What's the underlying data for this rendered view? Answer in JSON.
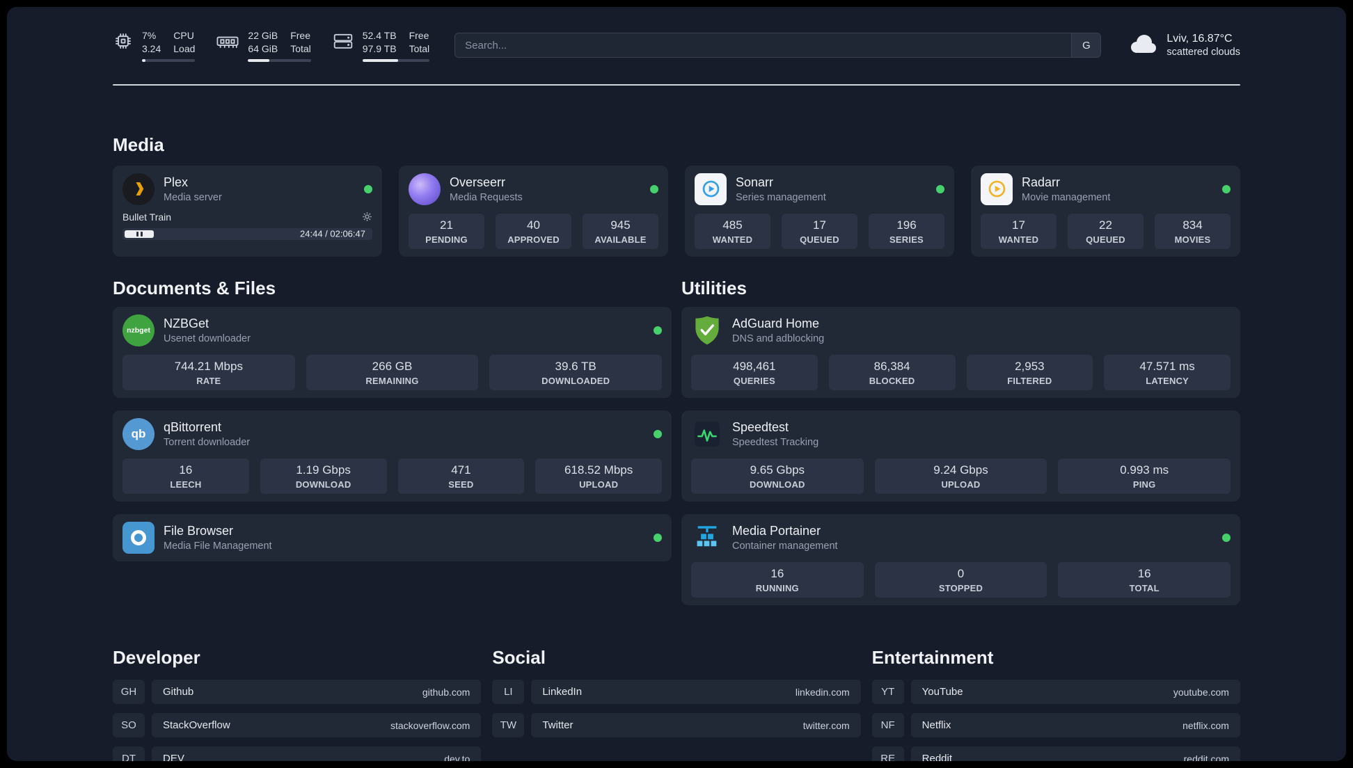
{
  "topbar": {
    "cpu": {
      "value_top": "7%",
      "value_bottom": "3.24",
      "label_top": "CPU",
      "label_bottom": "Load",
      "percent": 7
    },
    "ram": {
      "value_top": "22 GiB",
      "value_bottom": "64 GiB",
      "label_top": "Free",
      "label_bottom": "Total",
      "percent": 34
    },
    "disk": {
      "value_top": "52.4 TB",
      "value_bottom": "97.9 TB",
      "label_top": "Free",
      "label_bottom": "Total",
      "percent": 53
    },
    "search": {
      "placeholder": "Search...",
      "button": "G"
    },
    "weather": {
      "location": "Lviv, 16.87°C",
      "condition": "scattered clouds"
    }
  },
  "sections": {
    "media": {
      "title": "Media",
      "cards": [
        {
          "title": "Plex",
          "subtitle": "Media server",
          "status": "online",
          "player": {
            "track": "Bullet Train",
            "time": "24:44 / 02:06:47"
          }
        },
        {
          "title": "Overseerr",
          "subtitle": "Media Requests",
          "status": "online",
          "stats": [
            {
              "value": "21",
              "label": "PENDING"
            },
            {
              "value": "40",
              "label": "APPROVED"
            },
            {
              "value": "945",
              "label": "AVAILABLE"
            }
          ]
        },
        {
          "title": "Sonarr",
          "subtitle": "Series management",
          "status": "online",
          "stats": [
            {
              "value": "485",
              "label": "WANTED"
            },
            {
              "value": "17",
              "label": "QUEUED"
            },
            {
              "value": "196",
              "label": "SERIES"
            }
          ]
        },
        {
          "title": "Radarr",
          "subtitle": "Movie management",
          "status": "online",
          "stats": [
            {
              "value": "17",
              "label": "WANTED"
            },
            {
              "value": "22",
              "label": "QUEUED"
            },
            {
              "value": "834",
              "label": "MOVIES"
            }
          ]
        }
      ]
    },
    "documents": {
      "title": "Documents & Files",
      "cards": [
        {
          "title": "NZBGet",
          "subtitle": "Usenet downloader",
          "status": "online",
          "icon_text": "nzbget",
          "stats": [
            {
              "value": "744.21 Mbps",
              "label": "RATE"
            },
            {
              "value": "266 GB",
              "label": "REMAINING"
            },
            {
              "value": "39.6 TB",
              "label": "DOWNLOADED"
            }
          ]
        },
        {
          "title": "qBittorrent",
          "subtitle": "Torrent downloader",
          "status": "online",
          "icon_text": "qb",
          "stats": [
            {
              "value": "16",
              "label": "LEECH"
            },
            {
              "value": "1.19 Gbps",
              "label": "DOWNLOAD"
            },
            {
              "value": "471",
              "label": "SEED"
            },
            {
              "value": "618.52 Mbps",
              "label": "UPLOAD"
            }
          ]
        },
        {
          "title": "File Browser",
          "subtitle": "Media File Management",
          "status": "online"
        }
      ]
    },
    "utilities": {
      "title": "Utilities",
      "cards": [
        {
          "title": "AdGuard Home",
          "subtitle": "DNS and adblocking",
          "stats": [
            {
              "value": "498,461",
              "label": "QUERIES"
            },
            {
              "value": "86,384",
              "label": "BLOCKED"
            },
            {
              "value": "2,953",
              "label": "FILTERED"
            },
            {
              "value": "47.571 ms",
              "label": "LATENCY"
            }
          ]
        },
        {
          "title": "Speedtest",
          "subtitle": "Speedtest Tracking",
          "stats": [
            {
              "value": "9.65 Gbps",
              "label": "DOWNLOAD"
            },
            {
              "value": "9.24 Gbps",
              "label": "UPLOAD"
            },
            {
              "value": "0.993 ms",
              "label": "PING"
            }
          ]
        },
        {
          "title": "Media Portainer",
          "subtitle": "Container management",
          "status": "online",
          "stats": [
            {
              "value": "16",
              "label": "RUNNING"
            },
            {
              "value": "0",
              "label": "STOPPED"
            },
            {
              "value": "16",
              "label": "TOTAL"
            }
          ]
        }
      ]
    }
  },
  "links": {
    "developer": {
      "title": "Developer",
      "items": [
        {
          "abbr": "GH",
          "name": "Github",
          "url": "github.com"
        },
        {
          "abbr": "SO",
          "name": "StackOverflow",
          "url": "stackoverflow.com"
        },
        {
          "abbr": "DT",
          "name": "DEV",
          "url": "dev.to"
        }
      ]
    },
    "social": {
      "title": "Social",
      "items": [
        {
          "abbr": "LI",
          "name": "LinkedIn",
          "url": "linkedin.com"
        },
        {
          "abbr": "TW",
          "name": "Twitter",
          "url": "twitter.com"
        }
      ]
    },
    "entertainment": {
      "title": "Entertainment",
      "items": [
        {
          "abbr": "YT",
          "name": "YouTube",
          "url": "youtube.com"
        },
        {
          "abbr": "NF",
          "name": "Netflix",
          "url": "netflix.com"
        },
        {
          "abbr": "RE",
          "name": "Reddit",
          "url": "reddit.com"
        }
      ]
    }
  },
  "colors": {
    "status_online": "#47d16c",
    "plex_amber": "#e5a00d",
    "sonarr_blue": "#35a0e8",
    "radarr_yellow": "#f0b429",
    "adguard_green": "#64ad3d",
    "portainer_blue": "#1fa9e4",
    "speedtest_green": "#3bd671"
  }
}
